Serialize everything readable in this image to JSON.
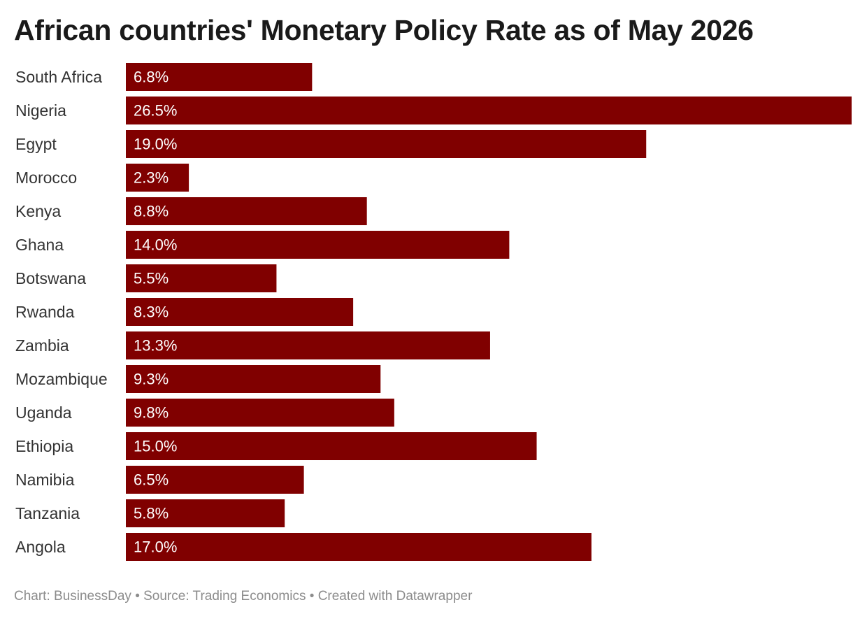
{
  "footer": {
    "chart_credit": "Chart: BusinessDay",
    "separator": "•",
    "source": "Source: Trading Economics",
    "created_with": "Created with Datawrapper"
  },
  "colors": {
    "bar": "#800000",
    "value_label": "#ffffff",
    "category_label": "#333333",
    "footer_text": "#8c8c8c"
  },
  "chart_data": {
    "type": "bar",
    "orientation": "horizontal",
    "title": "African countries' Monetary Policy Rate as of May 2026",
    "xlabel": "",
    "ylabel": "",
    "grid": false,
    "legend": "none",
    "xlim": [
      0,
      26.5
    ],
    "categories": [
      "South Africa",
      "Nigeria",
      "Egypt",
      "Morocco",
      "Kenya",
      "Ghana",
      "Botswana",
      "Rwanda",
      "Zambia",
      "Mozambique",
      "Uganda",
      "Ethiopia",
      "Namibia",
      "Tanzania",
      "Angola"
    ],
    "values": [
      6.8,
      26.5,
      19.0,
      2.3,
      8.8,
      14.0,
      5.5,
      8.3,
      13.3,
      9.3,
      9.8,
      15.0,
      6.5,
      5.8,
      17.0
    ],
    "value_labels": [
      "6.8%",
      "26.5%",
      "19.0%",
      "2.3%",
      "8.8%",
      "14.0%",
      "5.5%",
      "8.3%",
      "13.3%",
      "9.3%",
      "9.8%",
      "15.0%",
      "6.5%",
      "5.8%",
      "17.0%"
    ]
  }
}
